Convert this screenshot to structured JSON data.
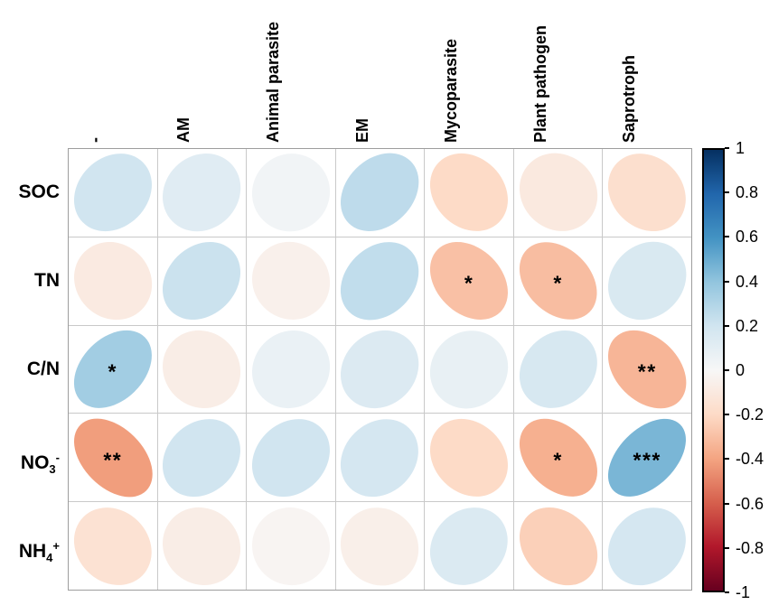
{
  "figure": {
    "background": "#ffffff",
    "description": "Correlation matrix (ellipse glyphs) between soil properties and fungal functional guilds"
  },
  "chart_data": {
    "type": "heatmap",
    "variant": "correlation-ellipse-matrix",
    "columns": [
      "-",
      "AM",
      "Animal parasite",
      "EM",
      "Mycoparasite",
      "Plant pathogen",
      "Saprotroph"
    ],
    "rows": [
      "SOC",
      "TN",
      "C/N",
      "NO3-",
      "NH4+"
    ],
    "row_labels_rich": [
      {
        "base": "SOC",
        "sub": "",
        "sup": ""
      },
      {
        "base": "TN",
        "sub": "",
        "sup": ""
      },
      {
        "base": "C/N",
        "sub": "",
        "sup": ""
      },
      {
        "base": "NO",
        "sub": "3",
        "sup": "-"
      },
      {
        "base": "NH",
        "sub": "4",
        "sup": "+"
      }
    ],
    "values": [
      [
        0.2,
        0.12,
        0.03,
        0.26,
        -0.2,
        -0.1,
        -0.17
      ],
      [
        -0.09,
        0.22,
        -0.05,
        0.25,
        -0.3,
        -0.31,
        0.16
      ],
      [
        0.35,
        -0.07,
        0.07,
        0.14,
        0.08,
        0.17,
        -0.34
      ],
      [
        -0.42,
        0.2,
        0.2,
        0.18,
        -0.2,
        -0.36,
        0.46
      ],
      [
        -0.15,
        -0.07,
        -0.02,
        -0.06,
        0.15,
        -0.24,
        0.18
      ]
    ],
    "significance": [
      [
        "",
        "",
        "",
        "",
        "",
        "",
        ""
      ],
      [
        "",
        "",
        "",
        "",
        "*",
        "*",
        ""
      ],
      [
        "*",
        "",
        "",
        "",
        "",
        "",
        "**"
      ],
      [
        "**",
        "",
        "",
        "",
        "",
        "*",
        "***"
      ],
      [
        "",
        "",
        "",
        "",
        "",
        "",
        ""
      ]
    ],
    "glyph": "ellipse",
    "positive_tilt": "up-right",
    "negative_tilt": "down-right",
    "grid": true,
    "colorbar": {
      "position": "right",
      "range": [
        -1,
        1
      ],
      "ticks": [
        "1",
        "0.8",
        "0.6",
        "0.4",
        "0.2",
        "0",
        "-0.2",
        "-0.4",
        "-0.6",
        "-0.8",
        "-1"
      ],
      "palette_stops": [
        {
          "value": 1.0,
          "color": "#053061"
        },
        {
          "value": 0.8,
          "color": "#2166ac"
        },
        {
          "value": 0.6,
          "color": "#4393c3"
        },
        {
          "value": 0.4,
          "color": "#92c5de"
        },
        {
          "value": 0.2,
          "color": "#d1e5f0"
        },
        {
          "value": 0.0,
          "color": "#f7f7f7"
        },
        {
          "value": -0.2,
          "color": "#fddbc7"
        },
        {
          "value": -0.4,
          "color": "#f4a582"
        },
        {
          "value": -0.6,
          "color": "#d6604d"
        },
        {
          "value": -0.8,
          "color": "#b2182b"
        },
        {
          "value": -1.0,
          "color": "#67001f"
        }
      ]
    }
  }
}
